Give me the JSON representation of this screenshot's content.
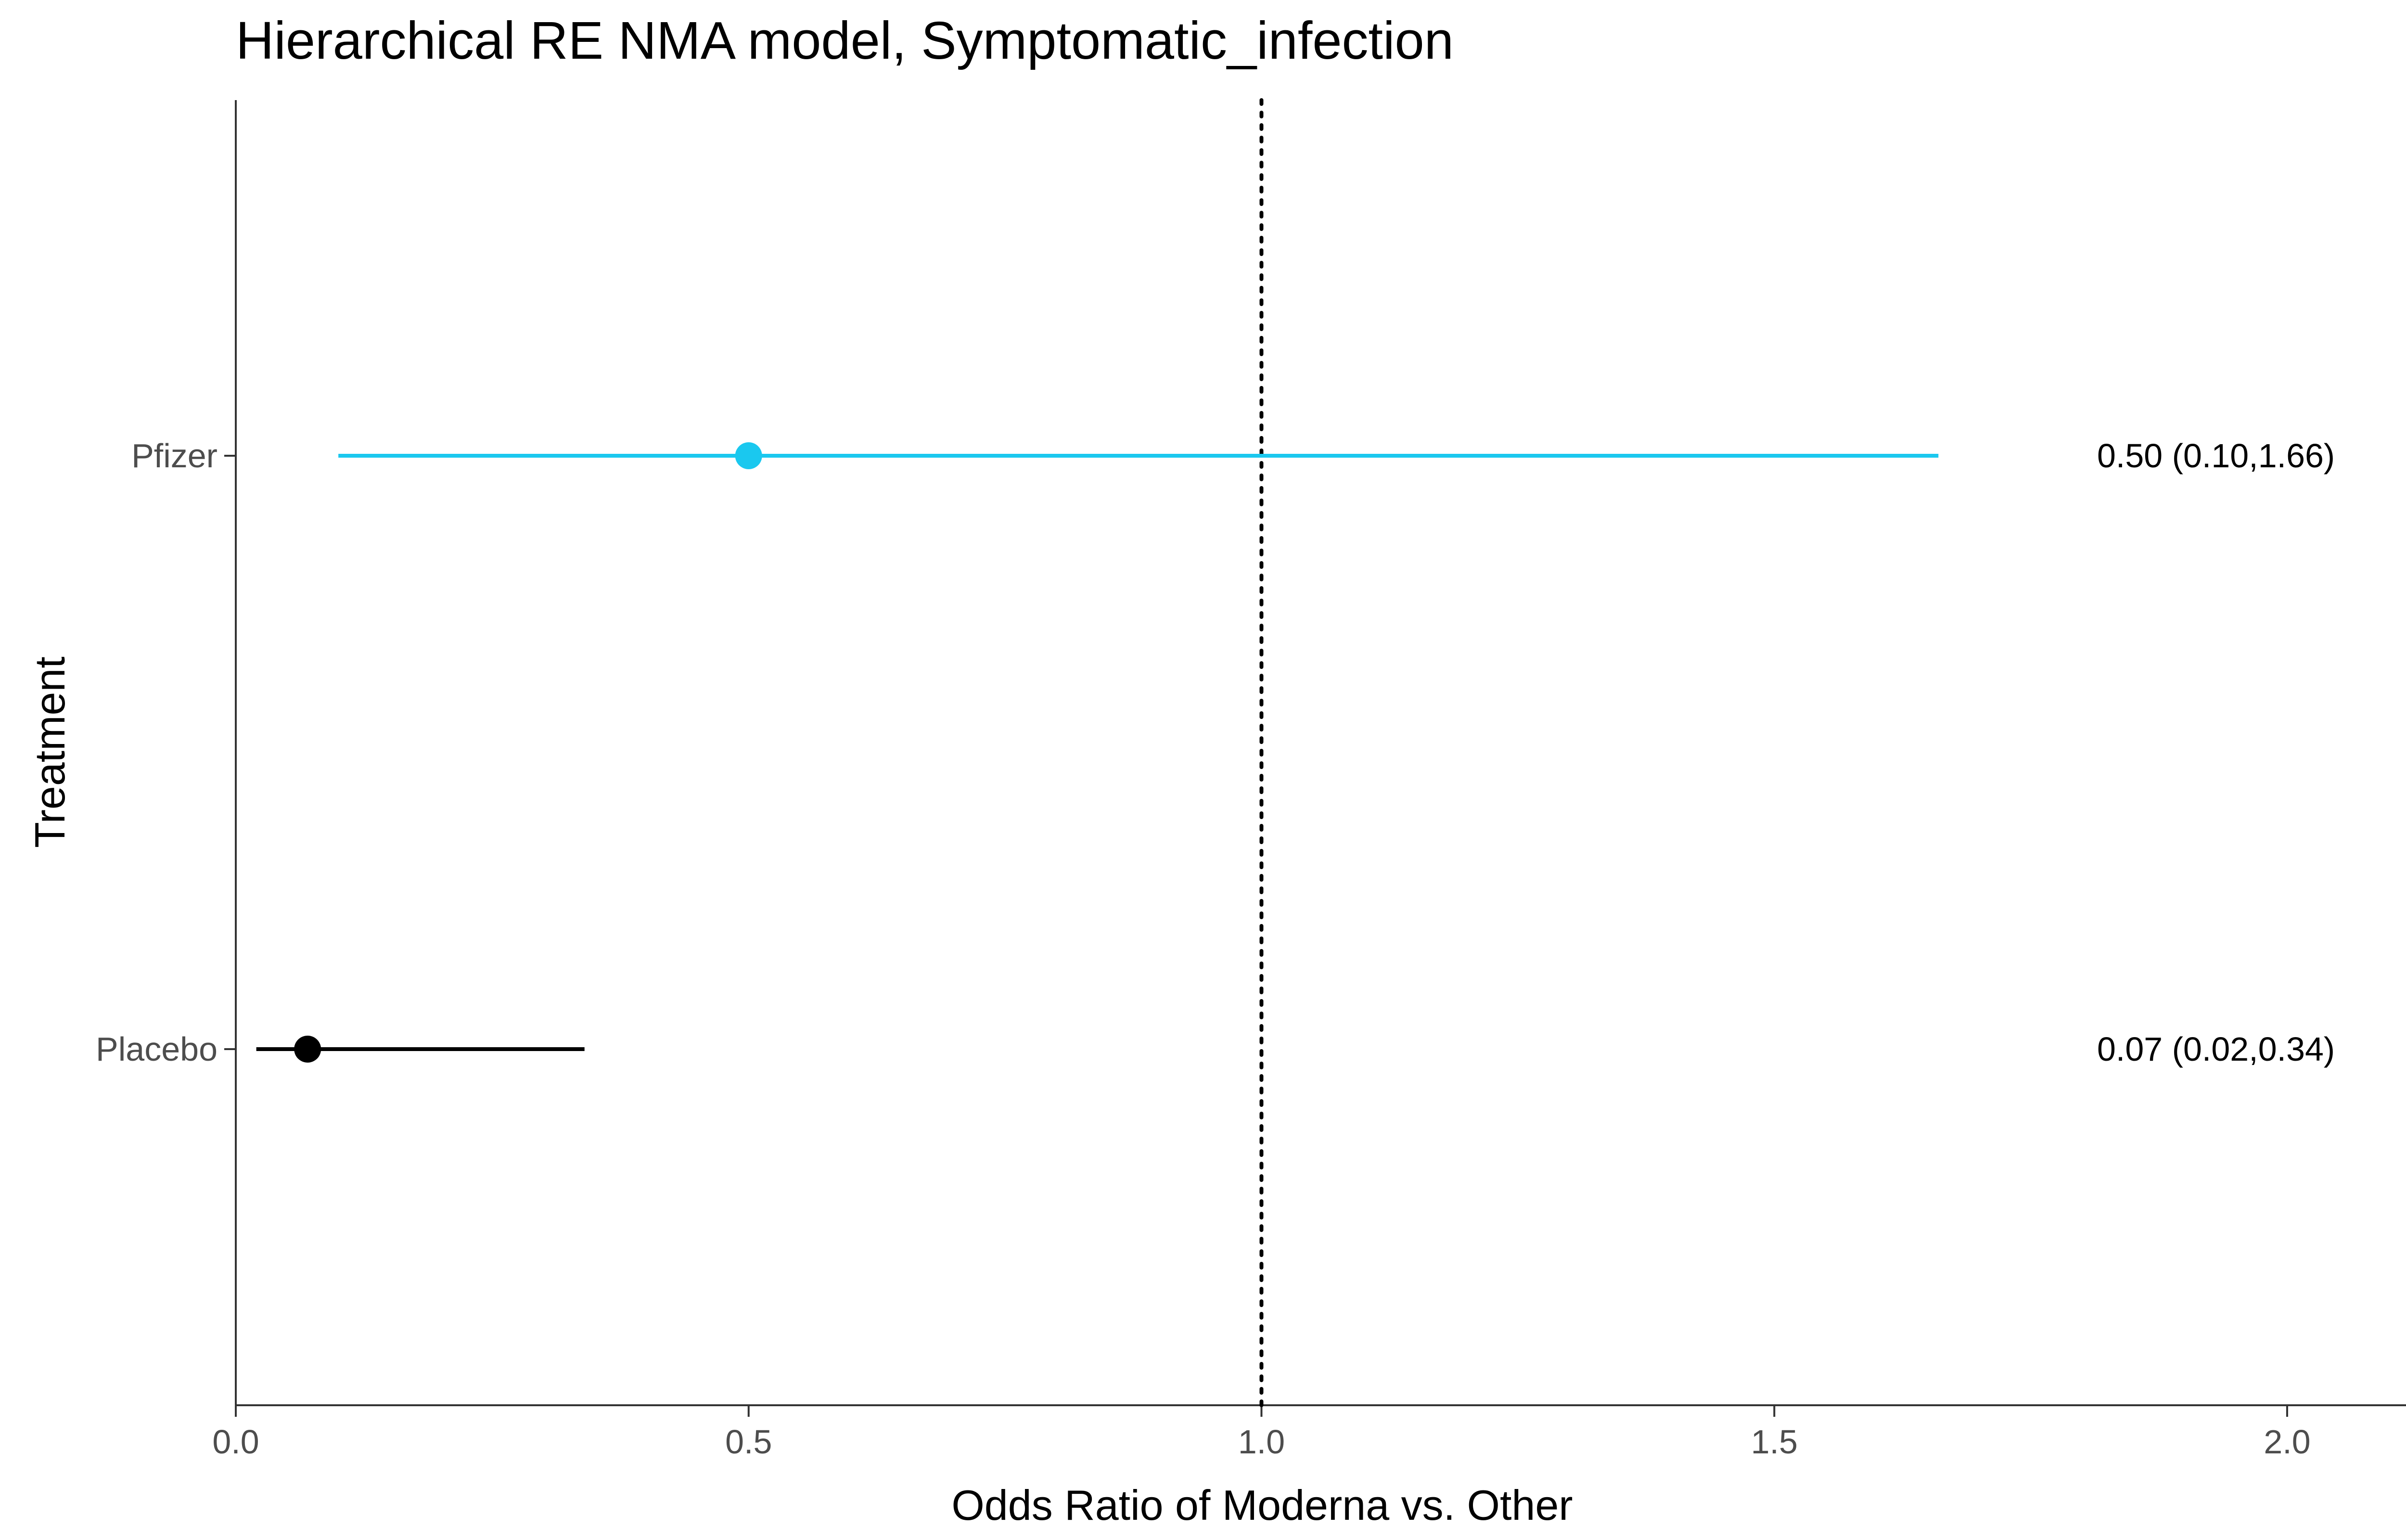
{
  "chart_data": {
    "type": "forest",
    "title": "Hierarchical RE NMA model, Symptomatic_infection",
    "xlabel": "Odds Ratio of Moderna vs. Other",
    "ylabel": "Treatment",
    "xlim": [
      0,
      2.15
    ],
    "xticks": [
      0,
      0.5,
      1,
      1.5,
      2
    ],
    "xtick_labels": [
      "0.0",
      "0.5",
      "1.0",
      "1.5",
      "2.0"
    ],
    "reference_line": 1.0,
    "reference_line_style": "dotted",
    "grid": false,
    "categories": [
      "Pfizer",
      "Placebo"
    ],
    "series": [
      {
        "category": "Pfizer",
        "estimate": 0.5,
        "lower": 0.1,
        "upper": 1.66,
        "label": "0.50 (0.10,1.66)",
        "color": "#1ac8ef"
      },
      {
        "category": "Placebo",
        "estimate": 0.07,
        "lower": 0.02,
        "upper": 0.34,
        "label": "0.07 (0.02,0.34)",
        "color": "#000000"
      }
    ]
  }
}
